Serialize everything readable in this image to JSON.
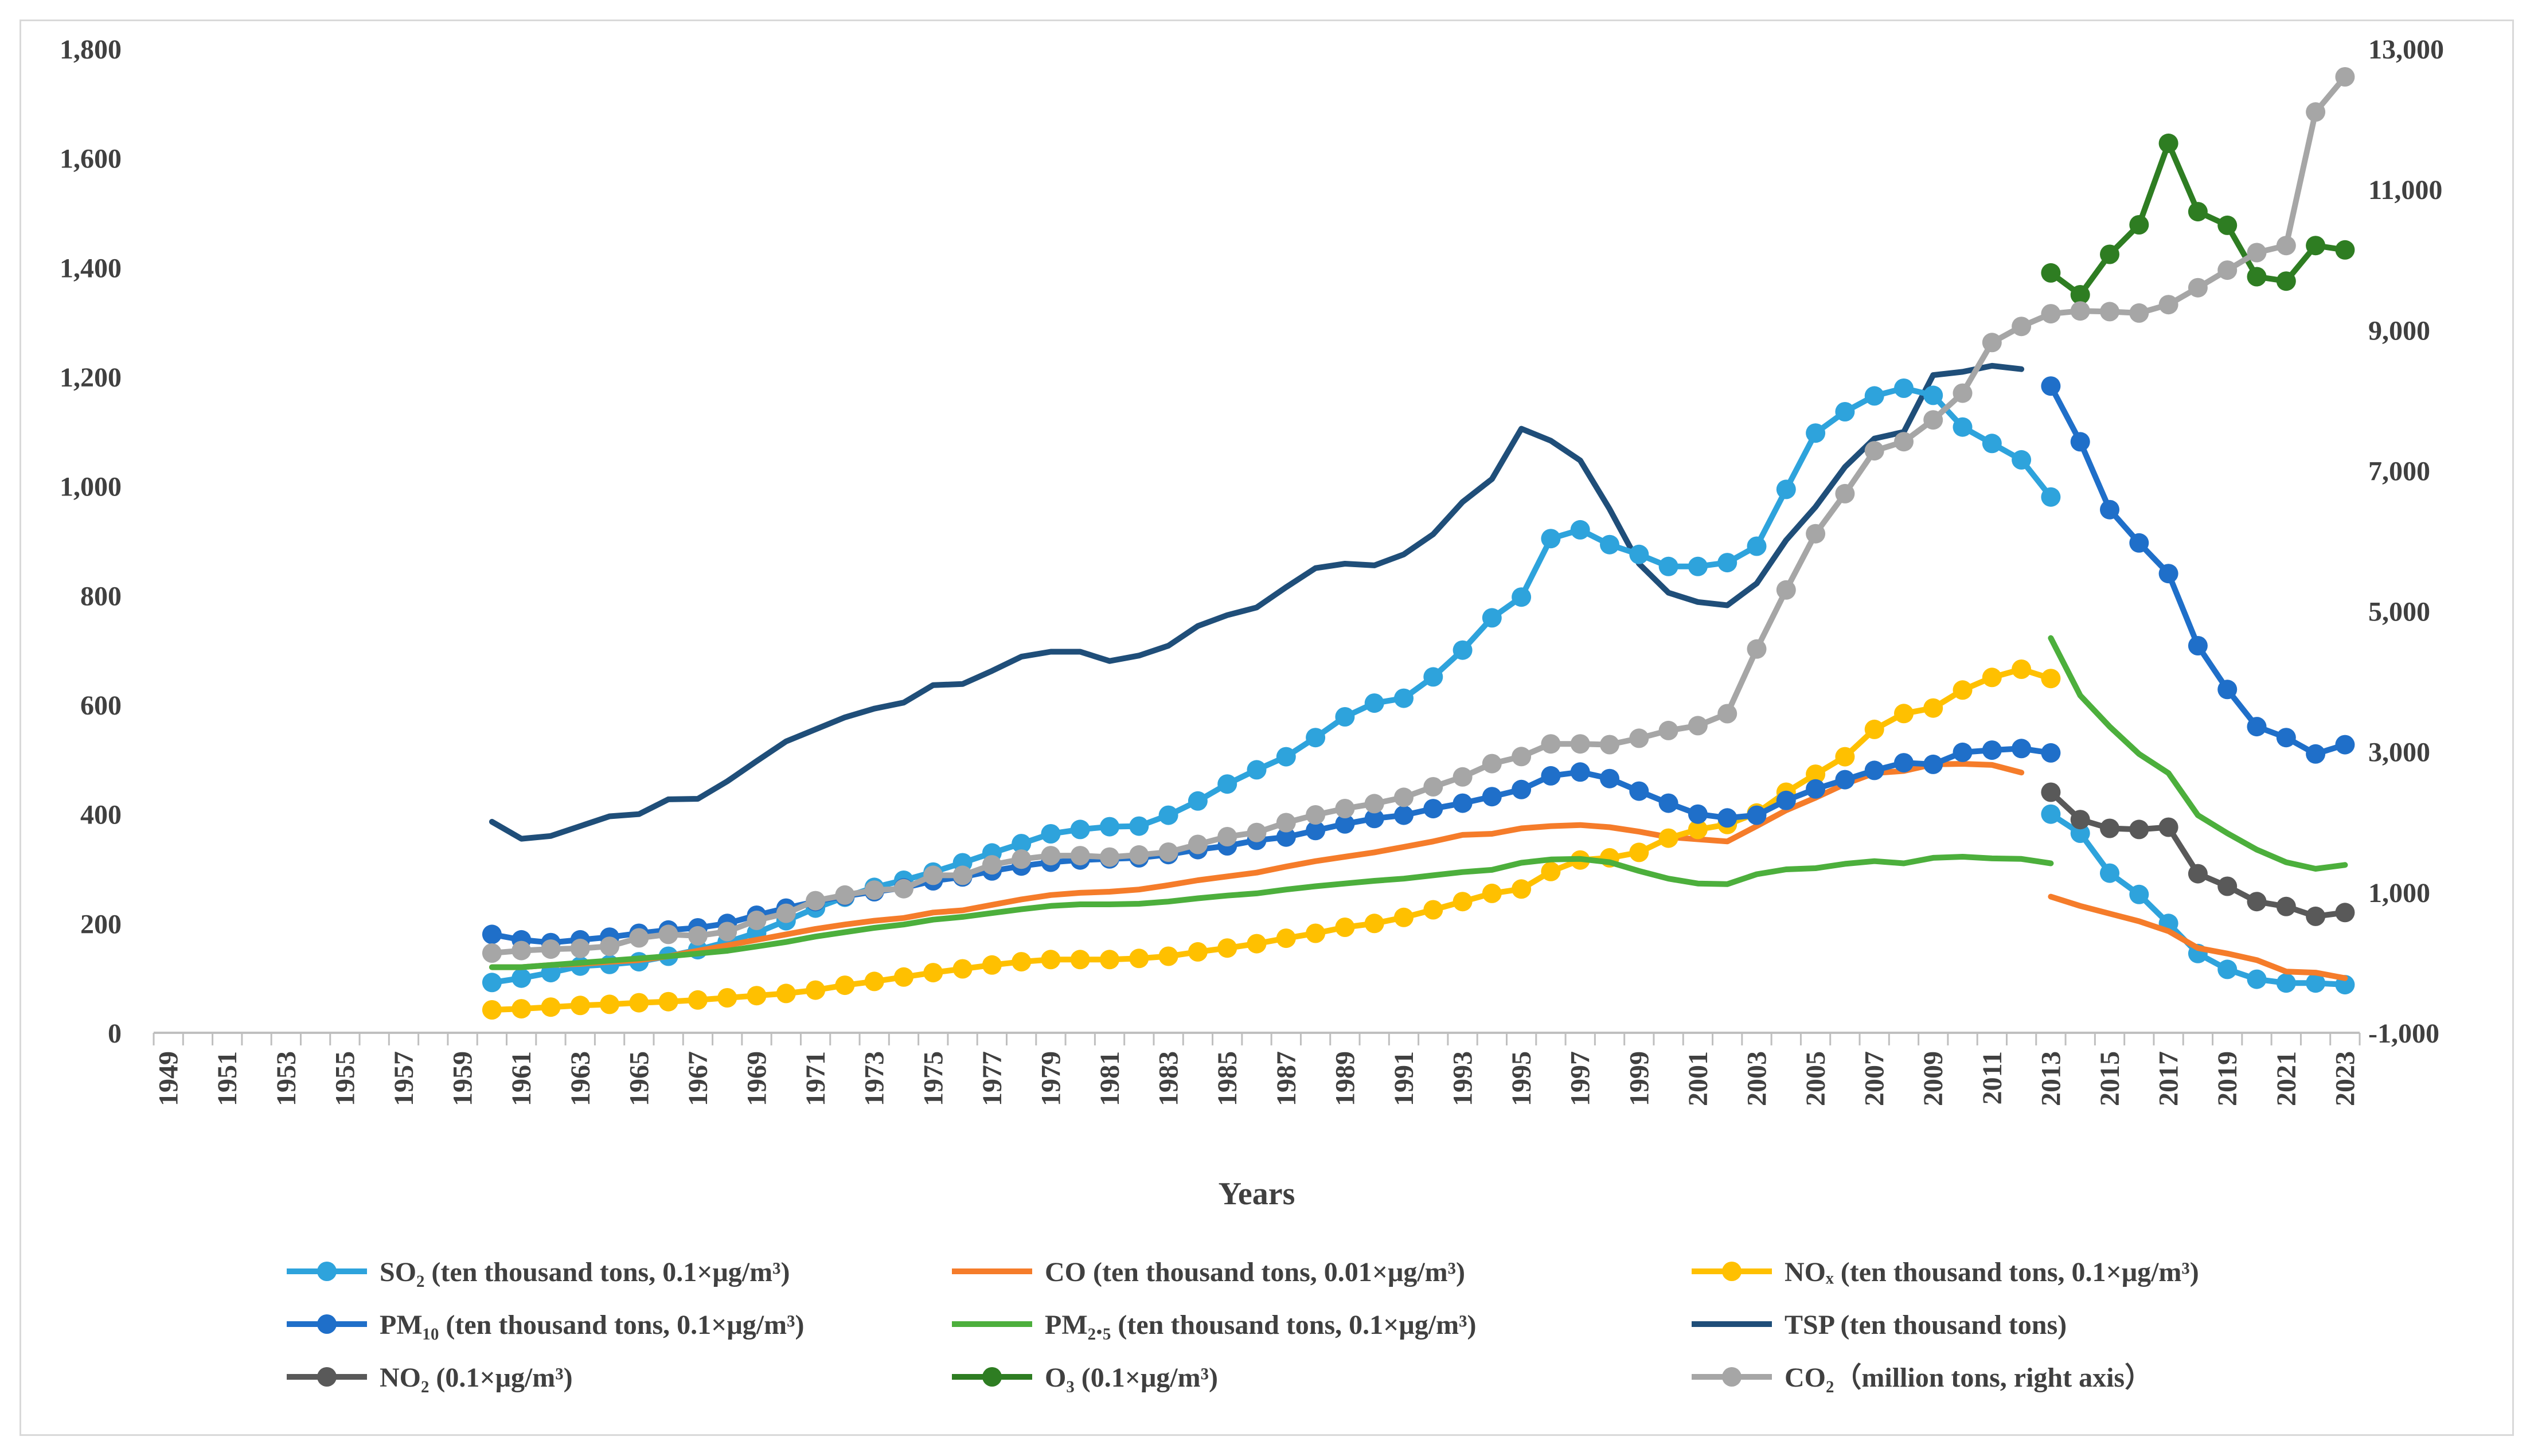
{
  "chart_data": {
    "type": "line",
    "title": "",
    "xlabel": "Years",
    "ylabel": "",
    "x_start": 1949,
    "x_end": 2023,
    "x_tick_labels": [
      "1949",
      "1951",
      "1953",
      "1955",
      "1957",
      "1959",
      "1961",
      "1963",
      "1965",
      "1967",
      "1969",
      "1971",
      "1973",
      "1975",
      "1977",
      "1979",
      "1981",
      "1983",
      "1985",
      "1987",
      "1989",
      "1991",
      "1993",
      "1995",
      "1997",
      "1999",
      "2001",
      "2003",
      "2005",
      "2007",
      "2009",
      "2011",
      "2013",
      "2015",
      "2017",
      "2019",
      "2021",
      "2023"
    ],
    "ylim_left": [
      0,
      1800
    ],
    "yticks_left": [
      "0",
      "200",
      "400",
      "600",
      "800",
      "1,000",
      "1,200",
      "1,400",
      "1,600",
      "1,800"
    ],
    "ylim_right": [
      -1000,
      13000
    ],
    "yticks_right": [
      "-1,000",
      "1,000",
      "3,000",
      "5,000",
      "7,000",
      "9,000",
      "11,000",
      "13,000"
    ],
    "grid": false,
    "legend_position": "bottom",
    "colors": {
      "so2": "#2ea3dc",
      "co": "#f57c2a",
      "nox": "#ffc000",
      "pm10": "#1f6fc9",
      "pm25": "#4caf3c",
      "tsp": "#1f4e79",
      "no2": "#595959",
      "o3": "#2e7d22",
      "co2": "#a6a6a6"
    },
    "series": [
      {
        "key": "tsp",
        "name": "TSP (ten thousand tons)",
        "axis": "left",
        "markers": false,
        "segments": [
          {
            "x_start": 1960,
            "values": [
              386,
              355,
              360,
              378,
              396,
              400,
              427,
              428,
              460,
              497,
              533,
              555,
              577,
              593,
              604,
              636,
              638,
              662,
              688,
              697,
              697,
              680,
              690,
              708,
              744,
              764,
              778,
              815,
              850,
              858,
              855,
              875,
              912,
              971,
              1013,
              1105,
              1083,
              1047,
              958,
              858,
              805,
              788,
              782,
              822,
              901,
              962,
              1035,
              1087,
              1099,
              1203,
              1209,
              1220,
              1214
            ]
          }
        ]
      },
      {
        "key": "so2",
        "name": "SO₂ (ten thousand tons, 0.1×μg/m³)",
        "axis": "left",
        "markers": true,
        "segments": [
          {
            "x_start": 1960,
            "values": [
              92,
              100,
              110,
              122,
              125,
              130,
              140,
              152,
              166,
              183,
              205,
              228,
              248,
              266,
              279,
              294,
              311,
              329,
              346,
              364,
              372,
              377,
              378,
              398,
              424,
              455,
              481,
              505,
              540,
              578,
              603,
              612,
              651,
              700,
              759,
              797,
              904,
              920,
              893,
              875,
              853,
              853,
              860,
              890,
              994,
              1097,
              1136,
              1165,
              1179,
              1166,
              1108,
              1078,
              1048,
              980
            ]
          },
          {
            "x_start": 2013,
            "values": [
              400,
              365,
              292,
              253,
              200,
              145,
              116,
              98,
              91,
              91,
              88
            ]
          }
        ]
      },
      {
        "key": "co",
        "name": "CO (ten thousand tons, 0.01×μg/m³)",
        "axis": "left",
        "markers": false,
        "segments": [
          {
            "x_start": 1960,
            "values": [
              120,
              120,
              124,
              126,
              130,
              133,
              140,
              150,
              160,
              170,
              180,
              190,
              198,
              205,
              210,
              220,
              224,
              234,
              244,
              252,
              256,
              258,
              262,
              270,
              279,
              286,
              293,
              304,
              314,
              322,
              330,
              340,
              350,
              362,
              364,
              374,
              378,
              380,
              376,
              368,
              358,
              354,
              350,
              378,
              407,
              430,
              455,
              475,
              479,
              491,
              492,
              490,
              476
            ]
          },
          {
            "x_start": 2013,
            "values": [
              249,
              232,
              218,
              204,
              186,
              155,
              145,
              133,
              112,
              110,
              100
            ]
          }
        ]
      },
      {
        "key": "nox",
        "name": "NOₓ (ten thousand tons, 0.1×μg/m³)",
        "axis": "left",
        "markers": true,
        "segments": [
          {
            "x_start": 1960,
            "values": [
              42,
              44,
              47,
              50,
              52,
              55,
              57,
              60,
              64,
              68,
              72,
              78,
              87,
              94,
              102,
              110,
              117,
              124,
              130,
              134,
              134,
              134,
              136,
              140,
              148,
              155,
              163,
              173,
              182,
              193,
              200,
              211,
              225,
              240,
              255,
              263,
              295,
              316,
              320,
              330,
              356,
              372,
              381,
              402,
              440,
              473,
              505,
              555,
              584,
              594,
              627,
              650,
              665,
              648
            ]
          }
        ]
      },
      {
        "key": "pm10",
        "name": "PM₁₀ (ten thousand tons, 0.1×μg/m³)",
        "axis": "left",
        "markers": true,
        "segments": [
          {
            "x_start": 1960,
            "values": [
              180,
              170,
              165,
              170,
              175,
              182,
              188,
              192,
              200,
              215,
              228,
              240,
              250,
              258,
              265,
              278,
              285,
              296,
              305,
              312,
              316,
              318,
              320,
              326,
              335,
              342,
              352,
              358,
              370,
              382,
              392,
              398,
              410,
              420,
              432,
              445,
              470,
              477,
              465,
              442,
              420,
              400,
              393,
              398,
              425,
              446,
              463,
              480,
              494,
              491,
              513,
              517,
              520,
              512
            ]
          },
          {
            "x_start": 2013,
            "values": [
              1183,
              1081,
              957,
              896,
              840,
              708,
              628,
              560,
              540,
              510,
              527
            ]
          }
        ]
      },
      {
        "key": "pm25",
        "name": "PM₂.₅ (ten thousand tons, 0.1×μg/m³)",
        "axis": "left",
        "markers": false,
        "segments": [
          {
            "x_start": 1960,
            "values": [
              120,
              120,
              124,
              128,
              132,
              136,
              140,
              145,
              150,
              158,
              166,
              176,
              184,
              192,
              198,
              207,
              212,
              219,
              226,
              232,
              235,
              235,
              236,
              240,
              246,
              251,
              255,
              262,
              268,
              273,
              278,
              282,
              288,
              294,
              298,
              311,
              317,
              318,
              312,
              296,
              282,
              273,
              272,
              290,
              299,
              301,
              309,
              314,
              310,
              320,
              322,
              319,
              318,
              310
            ]
          },
          {
            "x_start": 2013,
            "values": [
              722,
              617,
              560,
              510,
              475,
              398,
              365,
              335,
              312,
              300,
              307
            ]
          }
        ]
      },
      {
        "key": "no2",
        "name": "NO₂ (0.1×μg/m³)",
        "axis": "left",
        "markers": true,
        "segments": [
          {
            "x_start": 2013,
            "values": [
              440,
              390,
              374,
              372,
              376,
              291,
              268,
              240,
              231,
              213,
              220
            ]
          }
        ]
      },
      {
        "key": "o3",
        "name": "O₃ (0.1×μg/m³)",
        "axis": "left",
        "markers": true,
        "segments": [
          {
            "x_start": 2013,
            "values": [
              1390,
              1350,
              1424,
              1478,
              1627,
              1502,
              1477,
              1383,
              1375,
              1440,
              1432
            ]
          }
        ]
      },
      {
        "key": "co2",
        "name": "CO₂（million tons, right axis）",
        "axis": "right",
        "markers": true,
        "segments": [
          {
            "x_start": 1960,
            "values": [
              134,
              170,
              190,
              200,
              230,
              350,
              400,
              380,
              440,
              600,
              700,
              880,
              960,
              1030,
              1050,
              1240,
              1240,
              1390,
              1470,
              1520,
              1520,
              1500,
              1530,
              1570,
              1680,
              1790,
              1850,
              1990,
              2100,
              2190,
              2260,
              2350,
              2500,
              2640,
              2830,
              2930,
              3110,
              3110,
              3100,
              3190,
              3300,
              3370,
              3540,
              4460,
              5300,
              6100,
              6670,
              7280,
              7410,
              7720,
              8100,
              8820,
              9050,
              9230,
              9270,
              9260,
              9240,
              9360,
              9600,
              9850,
              10100,
              10200,
              12100,
              12600
            ]
          }
        ]
      }
    ],
    "legend": [
      {
        "key": "so2",
        "label": "SO₂ (ten thousand tons, 0.1×μg/m³)",
        "marker": true
      },
      {
        "key": "co",
        "label": "CO (ten thousand tons, 0.01×μg/m³)",
        "marker": false
      },
      {
        "key": "nox",
        "label": "NOₓ (ten thousand tons, 0.1×μg/m³)",
        "marker": true
      },
      {
        "key": "pm10",
        "label": "PM₁₀ (ten thousand tons, 0.1×μg/m³)",
        "marker": true
      },
      {
        "key": "pm25",
        "label": "PM₂.₅ (ten thousand tons, 0.1×μg/m³)",
        "marker": false
      },
      {
        "key": "tsp",
        "label": "TSP (ten thousand tons)",
        "marker": false
      },
      {
        "key": "no2",
        "label": "NO₂ (0.1×μg/m³)",
        "marker": true
      },
      {
        "key": "o3",
        "label": "O₃ (0.1×μg/m³)",
        "marker": true
      },
      {
        "key": "co2",
        "label": "CO₂（million tons, right axis）",
        "marker": true
      }
    ]
  }
}
